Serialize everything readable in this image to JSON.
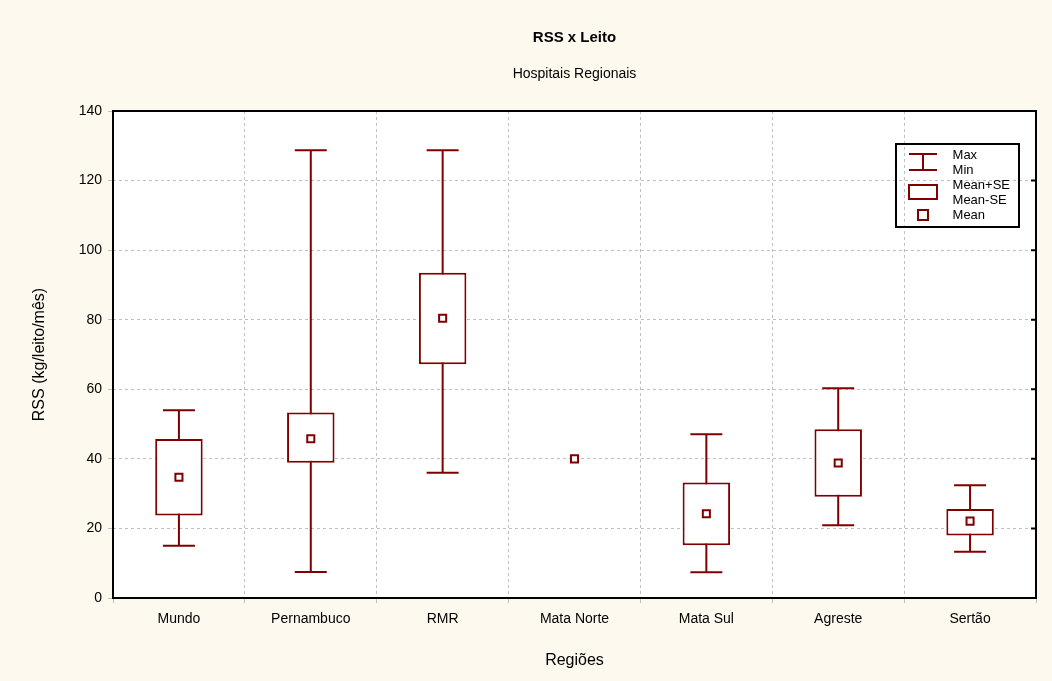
{
  "chart_data": {
    "type": "box",
    "title": "RSS x Leito",
    "subtitle": "Hospitais Regionais",
    "xlabel": "Regiões",
    "ylabel": "RSS (kg/leito/mês)",
    "categories": [
      "Mundo",
      "Pernambuco",
      "RMR",
      "Mata Norte",
      "Mata Sul",
      "Agreste",
      "Sertão"
    ],
    "color": "#800000",
    "boxes": [
      {
        "low": 15,
        "q1": 23.7,
        "q3": 45.7,
        "high": 54,
        "mean": 34.7
      },
      {
        "low": 7.5,
        "q1": 38.9,
        "q3": 53.3,
        "high": 128.7,
        "mean": 45.8
      },
      {
        "low": 36,
        "q1": 67.2,
        "q3": 93.5,
        "high": 128.7,
        "mean": 80.4
      },
      {
        "low": 40,
        "q1": 40,
        "q3": 40,
        "high": 40,
        "mean": 40
      },
      {
        "low": 7.4,
        "q1": 15.2,
        "q3": 33.2,
        "high": 47.1,
        "mean": 24.2
      },
      {
        "low": 20.9,
        "q1": 29.1,
        "q3": 48.5,
        "high": 60.3,
        "mean": 38.8
      },
      {
        "low": 13.3,
        "q1": 18,
        "q3": 25.6,
        "high": 32.4,
        "mean": 22.1
      }
    ],
    "ylim": [
      0,
      140
    ],
    "yticks": [
      0,
      20,
      40,
      60,
      80,
      100,
      120,
      140
    ],
    "grid": true,
    "marker": "square",
    "annotations": [
      "Max",
      "Min",
      "Mean+SE",
      "Mean-SE",
      "Mean"
    ]
  }
}
